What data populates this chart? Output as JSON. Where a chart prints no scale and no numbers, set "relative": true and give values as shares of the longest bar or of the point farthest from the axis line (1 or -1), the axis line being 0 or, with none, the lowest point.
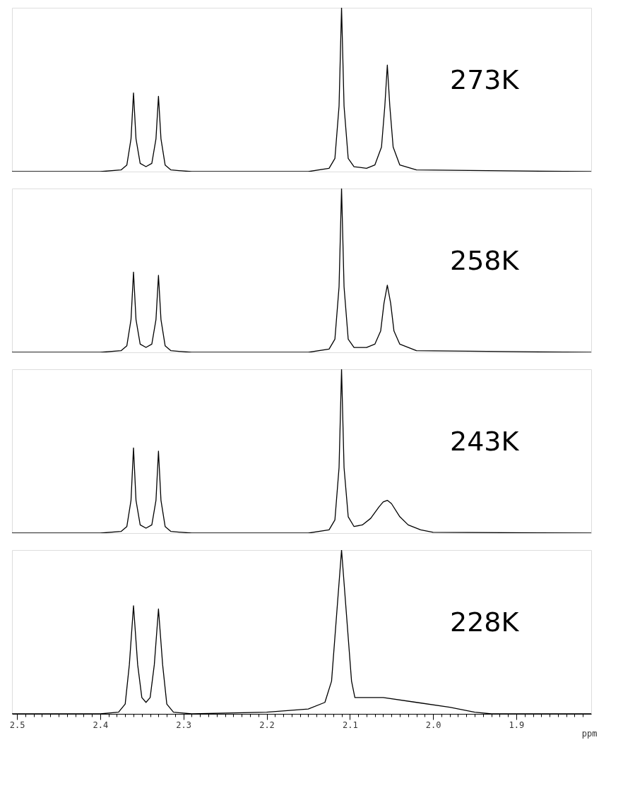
{
  "chart_data": [
    {
      "type": "line",
      "relative": true,
      "xlim": [
        2.506,
        1.81
      ],
      "tick_labels": false,
      "x": [
        2.506,
        2.4,
        2.375,
        2.368,
        2.363,
        2.36,
        2.357,
        2.352,
        2.345,
        2.338,
        2.333,
        2.33,
        2.327,
        2.322,
        2.315,
        2.29,
        2.15,
        2.125,
        2.118,
        2.113,
        2.11,
        2.107,
        2.102,
        2.095,
        2.08,
        2.07,
        2.062,
        2.058,
        2.055,
        2.052,
        2.048,
        2.04,
        2.02,
        1.81
      ],
      "series": [
        {
          "name": "273K",
          "color": "#000000",
          "values": [
            0,
            0,
            0.01,
            0.04,
            0.2,
            0.48,
            0.2,
            0.05,
            0.03,
            0.05,
            0.2,
            0.46,
            0.2,
            0.04,
            0.01,
            0,
            0,
            0.02,
            0.08,
            0.4,
            1,
            0.4,
            0.08,
            0.03,
            0.02,
            0.04,
            0.15,
            0.4,
            0.65,
            0.4,
            0.15,
            0.04,
            0.01,
            0
          ]
        }
      ]
    },
    {
      "type": "line",
      "relative": true,
      "xlim": [
        2.506,
        1.81
      ],
      "tick_labels": false,
      "x": [
        2.506,
        2.4,
        2.375,
        2.368,
        2.363,
        2.36,
        2.357,
        2.352,
        2.345,
        2.338,
        2.333,
        2.33,
        2.327,
        2.322,
        2.315,
        2.29,
        2.15,
        2.125,
        2.118,
        2.113,
        2.11,
        2.107,
        2.102,
        2.095,
        2.08,
        2.07,
        2.063,
        2.059,
        2.055,
        2.051,
        2.047,
        2.04,
        2.02,
        1.81
      ],
      "series": [
        {
          "name": "258K",
          "color": "#000000",
          "values": [
            0,
            0,
            0.01,
            0.04,
            0.2,
            0.49,
            0.2,
            0.05,
            0.03,
            0.05,
            0.2,
            0.47,
            0.2,
            0.04,
            0.01,
            0,
            0,
            0.02,
            0.08,
            0.4,
            1,
            0.4,
            0.08,
            0.03,
            0.03,
            0.05,
            0.13,
            0.3,
            0.41,
            0.3,
            0.13,
            0.05,
            0.01,
            0
          ]
        }
      ]
    },
    {
      "type": "line",
      "relative": true,
      "xlim": [
        2.506,
        1.81
      ],
      "tick_labels": false,
      "x": [
        2.506,
        2.4,
        2.375,
        2.368,
        2.363,
        2.36,
        2.357,
        2.352,
        2.345,
        2.338,
        2.333,
        2.33,
        2.327,
        2.322,
        2.315,
        2.29,
        2.15,
        2.125,
        2.118,
        2.113,
        2.11,
        2.107,
        2.102,
        2.095,
        2.085,
        2.075,
        2.065,
        2.06,
        2.055,
        2.05,
        2.04,
        2.03,
        2.015,
        2.0,
        1.81
      ],
      "series": [
        {
          "name": "243K",
          "color": "#000000",
          "values": [
            0,
            0,
            0.01,
            0.04,
            0.2,
            0.52,
            0.2,
            0.05,
            0.03,
            0.05,
            0.2,
            0.5,
            0.2,
            0.04,
            0.01,
            0,
            0,
            0.02,
            0.08,
            0.4,
            1,
            0.4,
            0.1,
            0.04,
            0.05,
            0.09,
            0.16,
            0.19,
            0.2,
            0.18,
            0.1,
            0.05,
            0.02,
            0.005,
            0
          ]
        }
      ]
    },
    {
      "type": "line",
      "relative": true,
      "xlim": [
        2.506,
        1.81
      ],
      "tick_labels": "x",
      "xlabel": "ppm",
      "xticks": [
        {
          "value": 2.5,
          "label": "2.5"
        },
        {
          "value": 2.49,
          "label": null
        },
        {
          "value": 2.48,
          "label": null
        },
        {
          "value": 2.47,
          "label": null
        },
        {
          "value": 2.46,
          "label": null
        },
        {
          "value": 2.45,
          "label": null
        },
        {
          "value": 2.44,
          "label": null
        },
        {
          "value": 2.43,
          "label": null
        },
        {
          "value": 2.42,
          "label": null
        },
        {
          "value": 2.41,
          "label": null
        },
        {
          "value": 2.4,
          "label": "2.4"
        },
        {
          "value": 2.39,
          "label": null
        },
        {
          "value": 2.38,
          "label": null
        },
        {
          "value": 2.37,
          "label": null
        },
        {
          "value": 2.36,
          "label": null
        },
        {
          "value": 2.35,
          "label": null
        },
        {
          "value": 2.34,
          "label": null
        },
        {
          "value": 2.33,
          "label": null
        },
        {
          "value": 2.32,
          "label": null
        },
        {
          "value": 2.31,
          "label": null
        },
        {
          "value": 2.3,
          "label": "2.3"
        },
        {
          "value": 2.29,
          "label": null
        },
        {
          "value": 2.28,
          "label": null
        },
        {
          "value": 2.27,
          "label": null
        },
        {
          "value": 2.26,
          "label": null
        },
        {
          "value": 2.25,
          "label": null
        },
        {
          "value": 2.24,
          "label": null
        },
        {
          "value": 2.23,
          "label": null
        },
        {
          "value": 2.22,
          "label": null
        },
        {
          "value": 2.21,
          "label": null
        },
        {
          "value": 2.2,
          "label": "2.2"
        },
        {
          "value": 2.19,
          "label": null
        },
        {
          "value": 2.18,
          "label": null
        },
        {
          "value": 2.17,
          "label": null
        },
        {
          "value": 2.16,
          "label": null
        },
        {
          "value": 2.15,
          "label": null
        },
        {
          "value": 2.14,
          "label": null
        },
        {
          "value": 2.13,
          "label": null
        },
        {
          "value": 2.12,
          "label": null
        },
        {
          "value": 2.11,
          "label": null
        },
        {
          "value": 2.1,
          "label": "2.1"
        },
        {
          "value": 2.09,
          "label": null
        },
        {
          "value": 2.08,
          "label": null
        },
        {
          "value": 2.07,
          "label": null
        },
        {
          "value": 2.06,
          "label": null
        },
        {
          "value": 2.05,
          "label": null
        },
        {
          "value": 2.04,
          "label": null
        },
        {
          "value": 2.03,
          "label": null
        },
        {
          "value": 2.02,
          "label": null
        },
        {
          "value": 2.01,
          "label": null
        },
        {
          "value": 2.0,
          "label": "2.0"
        },
        {
          "value": 1.99,
          "label": null
        },
        {
          "value": 1.98,
          "label": null
        },
        {
          "value": 1.97,
          "label": null
        },
        {
          "value": 1.96,
          "label": null
        },
        {
          "value": 1.95,
          "label": null
        },
        {
          "value": 1.94,
          "label": null
        },
        {
          "value": 1.93,
          "label": null
        },
        {
          "value": 1.92,
          "label": null
        },
        {
          "value": 1.91,
          "label": null
        },
        {
          "value": 1.9,
          "label": "1.9"
        },
        {
          "value": 1.89,
          "label": null
        },
        {
          "value": 1.88,
          "label": null
        },
        {
          "value": 1.87,
          "label": null
        },
        {
          "value": 1.86,
          "label": null
        },
        {
          "value": 1.85,
          "label": null
        },
        {
          "value": 1.84,
          "label": null
        },
        {
          "value": 1.83,
          "label": null
        },
        {
          "value": 1.82,
          "label": null
        }
      ],
      "x": [
        2.506,
        2.4,
        2.378,
        2.37,
        2.365,
        2.36,
        2.355,
        2.35,
        2.345,
        2.34,
        2.335,
        2.33,
        2.325,
        2.32,
        2.312,
        2.29,
        2.2,
        2.15,
        2.13,
        2.122,
        2.116,
        2.11,
        2.104,
        2.098,
        2.094,
        2.06,
        2.02,
        1.98,
        1.95,
        1.93,
        1.81
      ],
      "series": [
        {
          "name": "228K",
          "color": "#000000",
          "values": [
            0,
            0,
            0.01,
            0.06,
            0.3,
            0.66,
            0.3,
            0.1,
            0.07,
            0.1,
            0.3,
            0.64,
            0.3,
            0.06,
            0.01,
            0,
            0.01,
            0.03,
            0.07,
            0.2,
            0.6,
            1,
            0.6,
            0.2,
            0.1,
            0.1,
            0.07,
            0.04,
            0.01,
            0,
            0
          ]
        }
      ]
    }
  ]
}
